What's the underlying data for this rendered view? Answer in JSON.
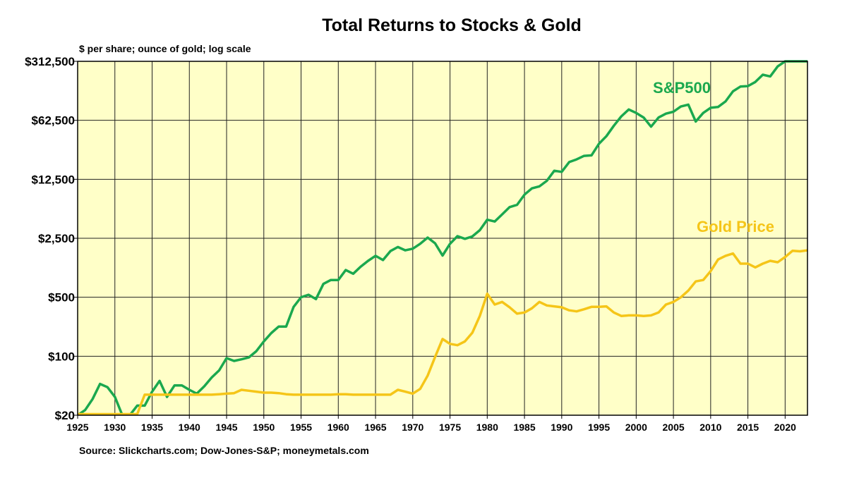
{
  "chart_data": {
    "type": "line",
    "title": "Total Returns to Stocks & Gold",
    "subtitle": "$ per share; ounce of gold; log scale",
    "source": "Source: Slickcharts.com; Dow-Jones-S&P; moneymetals.com",
    "yscale": "log",
    "ylim": [
      20,
      312500
    ],
    "xlim": [
      1925,
      2023
    ],
    "grid": true,
    "plot_background": "#ffffc8",
    "y_ticks": [
      {
        "value": 20,
        "label": "$20"
      },
      {
        "value": 100,
        "label": "$100"
      },
      {
        "value": 500,
        "label": "$500"
      },
      {
        "value": 2500,
        "label": "$2,500"
      },
      {
        "value": 12500,
        "label": "$12,500"
      },
      {
        "value": 62500,
        "label": "$62,500"
      },
      {
        "value": 312500,
        "label": "$312,500"
      }
    ],
    "x_ticks": [
      "1925",
      "1930",
      "1935",
      "1940",
      "1945",
      "1950",
      "1955",
      "1960",
      "1965",
      "1970",
      "1975",
      "1980",
      "1985",
      "1990",
      "1995",
      "2000",
      "2005",
      "2010",
      "2015",
      "2020"
    ],
    "series": [
      {
        "name": "S&P500",
        "color": "#1aa84e",
        "x": [
          1925,
          1926,
          1927,
          1928,
          1929,
          1930,
          1931,
          1932,
          1933,
          1934,
          1935,
          1936,
          1937,
          1938,
          1939,
          1940,
          1941,
          1942,
          1943,
          1944,
          1945,
          1946,
          1947,
          1948,
          1949,
          1950,
          1951,
          1952,
          1953,
          1954,
          1955,
          1956,
          1957,
          1958,
          1959,
          1960,
          1961,
          1962,
          1963,
          1964,
          1965,
          1966,
          1967,
          1968,
          1969,
          1970,
          1971,
          1972,
          1973,
          1974,
          1975,
          1976,
          1977,
          1978,
          1979,
          1980,
          1981,
          1982,
          1983,
          1984,
          1985,
          1986,
          1987,
          1988,
          1989,
          1990,
          1991,
          1992,
          1993,
          1994,
          1995,
          1996,
          1997,
          1998,
          1999,
          2000,
          2001,
          2002,
          2003,
          2004,
          2005,
          2006,
          2007,
          2008,
          2009,
          2010,
          2011,
          2012,
          2013,
          2014,
          2015,
          2016,
          2017,
          2018,
          2019,
          2020,
          2021,
          2022,
          2023
        ],
        "values": [
          20,
          23,
          31,
          47,
          43,
          33,
          18,
          17,
          26,
          26,
          38,
          51,
          33,
          45,
          45,
          40,
          36,
          44,
          56,
          68,
          95,
          88,
          92,
          97,
          115,
          150,
          188,
          225,
          225,
          385,
          500,
          535,
          475,
          720,
          800,
          800,
          1050,
          950,
          1150,
          1350,
          1550,
          1380,
          1760,
          1970,
          1800,
          1880,
          2150,
          2550,
          2180,
          1560,
          2150,
          2650,
          2460,
          2630,
          3120,
          4150,
          3950,
          4800,
          5850,
          6220,
          8230,
          9750,
          10300,
          12000,
          15800,
          15300,
          20000,
          21500,
          23700,
          24000,
          33000,
          40500,
          54000,
          69500,
          84000,
          76500,
          67500,
          52500,
          67500,
          75000,
          79000,
          91000,
          96000,
          60500,
          76500,
          88000,
          90000,
          104500,
          138000,
          157000,
          159000,
          178000,
          217000,
          207000,
          272000,
          322000,
          415000,
          340000,
          414000
        ]
      },
      {
        "name": "Gold Price",
        "color": "#f5c518",
        "x": [
          1925,
          1926,
          1927,
          1928,
          1929,
          1930,
          1931,
          1932,
          1933,
          1934,
          1935,
          1936,
          1937,
          1938,
          1939,
          1940,
          1941,
          1942,
          1943,
          1944,
          1945,
          1946,
          1947,
          1948,
          1949,
          1950,
          1951,
          1952,
          1953,
          1954,
          1955,
          1956,
          1957,
          1958,
          1959,
          1960,
          1961,
          1962,
          1963,
          1964,
          1965,
          1966,
          1967,
          1968,
          1969,
          1970,
          1971,
          1972,
          1973,
          1974,
          1975,
          1976,
          1977,
          1978,
          1979,
          1980,
          1981,
          1982,
          1983,
          1984,
          1985,
          1986,
          1987,
          1988,
          1989,
          1990,
          1991,
          1992,
          1993,
          1994,
          1995,
          1996,
          1997,
          1998,
          1999,
          2000,
          2001,
          2002,
          2003,
          2004,
          2005,
          2006,
          2007,
          2008,
          2009,
          2010,
          2011,
          2012,
          2013,
          2014,
          2015,
          2016,
          2017,
          2018,
          2019,
          2020,
          2021,
          2022,
          2023
        ],
        "values": [
          20.6,
          20.6,
          20.6,
          20.6,
          20.6,
          20.6,
          20.6,
          20.6,
          20.6,
          35,
          35,
          35,
          35,
          35,
          35,
          35,
          35,
          35,
          35,
          35.5,
          36,
          36.5,
          40,
          39,
          38,
          37,
          37,
          36.5,
          35.5,
          35,
          35,
          35,
          35,
          35,
          35,
          35.5,
          35.5,
          35,
          35,
          35,
          35,
          35,
          35,
          40,
          38,
          36,
          41,
          59,
          98,
          160,
          140,
          135,
          150,
          190,
          300,
          550,
          410,
          440,
          380,
          320,
          330,
          370,
          440,
          400,
          390,
          380,
          350,
          340,
          360,
          385,
          385,
          390,
          330,
          300,
          305,
          305,
          300,
          305,
          330,
          410,
          440,
          500,
          600,
          770,
          800,
          1020,
          1400,
          1550,
          1650,
          1250,
          1250,
          1130,
          1250,
          1350,
          1300,
          1500,
          1780,
          1750,
          1800
        ]
      }
    ]
  }
}
